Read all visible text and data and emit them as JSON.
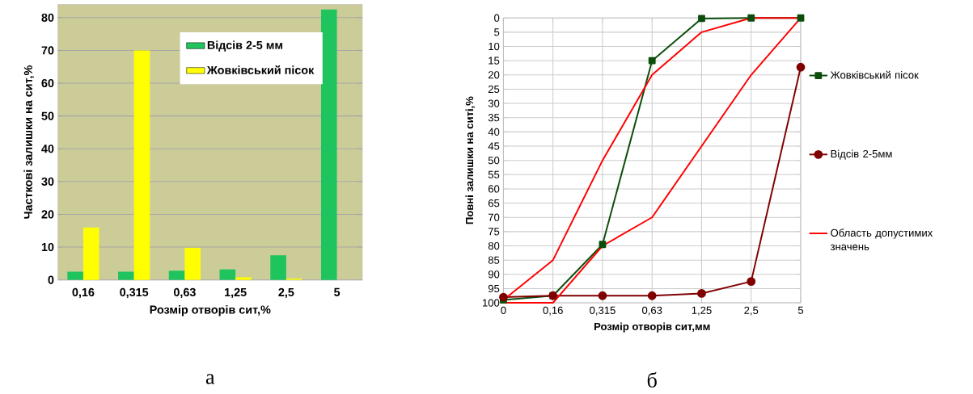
{
  "chart_data": [
    {
      "type": "bar",
      "xlabel": "Розмір отворів сит,%",
      "ylabel": "Часткові залишки на сит,%",
      "categories": [
        "0,16",
        "0,315",
        "0,63",
        "1,25",
        "2,5",
        "5"
      ],
      "series": [
        {
          "name": "Відсів 2-5 мм",
          "color": "#1fc45f",
          "values": [
            2.5,
            2.5,
            2.8,
            3.2,
            7.5,
            82.5
          ]
        },
        {
          "name": "Жовківський пісок",
          "color": "#ffff00",
          "values": [
            16,
            70,
            9.8,
            0.8,
            0.4,
            null
          ]
        }
      ],
      "ylim": [
        0,
        84
      ],
      "yticks": [
        0,
        10,
        20,
        30,
        40,
        50,
        60,
        70,
        80
      ],
      "grid": "y",
      "legend": "top right",
      "annotations": [
        "а"
      ]
    },
    {
      "type": "line",
      "xlabel": "Розмір отворів сит,мм",
      "ylabel": "Повні залишки на ситі,%",
      "categories": [
        "0",
        "0,16",
        "0,315",
        "0,63",
        "1,25",
        "2,5",
        "5"
      ],
      "series": [
        {
          "name": "Жовківський пісок",
          "color": "#0b4d0b",
          "marker": "square",
          "values": [
            99,
            97.5,
            79.5,
            15,
            0.2,
            0,
            0
          ]
        },
        {
          "name": "Відсів 2-5мм",
          "color": "#800000",
          "marker": "circle",
          "values": [
            98,
            97.5,
            97.5,
            97.5,
            96.7,
            92.5,
            17.3
          ]
        },
        {
          "name": "Область допустимих значень",
          "color": "#ff0000",
          "marker": "none",
          "values": [
            100,
            100,
            80,
            70,
            45,
            20,
            0
          ]
        },
        {
          "color": "#ff0000",
          "marker": "none",
          "values": [
            99,
            85,
            50,
            20,
            5,
            0,
            0
          ]
        }
      ],
      "ylim": [
        100,
        0
      ],
      "yticks": [
        0,
        5,
        10,
        15,
        20,
        25,
        30,
        35,
        40,
        45,
        50,
        55,
        60,
        65,
        70,
        75,
        80,
        85,
        90,
        95,
        100
      ],
      "grid": true,
      "legend": "right",
      "annotations": [
        "б"
      ]
    }
  ]
}
